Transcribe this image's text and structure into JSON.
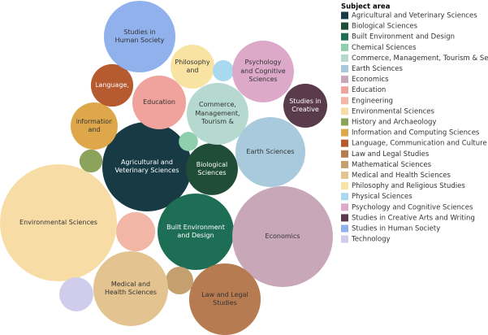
{
  "chart_data": {
    "type": "packed-bubble",
    "legend_title": "Subject area",
    "legend_position": "right",
    "categories": [
      "Agricultural and Veterinary Sciences",
      "Biological Sciences",
      "Built Environment and Design",
      "Chemical Sciences",
      "Commerce, Management, Tourism & Services",
      "Earth Sciences",
      "Economics",
      "Education",
      "Engineering",
      "Environmental Sciences",
      "History and Archaeology",
      "Information and Computing Sciences",
      "Language, Communication and Culture",
      "Law and Legal Studies",
      "Mathematical Sciences",
      "Medical and Health Sciences",
      "Philosophy and Religious Studies",
      "Physical Sciences",
      "Psychology and Cognitive Sciences",
      "Studies in Creative Arts and Writing",
      "Studies in Human Society",
      "Technology"
    ],
    "bubble_labels": [
      "Agricultural and Veterinary Sciences",
      "Biological Sciences",
      "Built Environment and Design",
      null,
      "Commerce, Management, Tourism &",
      "Earth Sciences",
      "Economics",
      "Education",
      null,
      "Environmental Sciences",
      null,
      "Information and",
      "Language,",
      "Law and Legal Studies",
      null,
      "Medical and Health Sciences",
      "Philosophy and",
      null,
      "Psychology and Cognitive Sciences",
      "Studies in Creative",
      "Studies in Human Society",
      null
    ],
    "values": [
      30.3,
      10.2,
      22.1,
      1.4,
      14.4,
      18.5,
      38.4,
      10.9,
      5.8,
      51.8,
      2.0,
      8.4,
      6.8,
      19.4,
      2.9,
      21.2,
      7.3,
      1.7,
      14.4,
      7.3,
      19.4,
      4.4
    ],
    "colors": [
      "#173a44",
      "#1f4d37",
      "#1e6e55",
      "#8fcfae",
      "#b5d9cf",
      "#a9cadc",
      "#c8a7b9",
      "#f0a39c",
      "#f2b6a6",
      "#f8dca6",
      "#8ba35b",
      "#dea84a",
      "#b65a2f",
      "#b77b52",
      "#c4a06f",
      "#e3c390",
      "#f8e3a3",
      "#a9d9ee",
      "#dca9c9",
      "#5a3b4b",
      "#90b1ec",
      "#d0cdec"
    ]
  }
}
